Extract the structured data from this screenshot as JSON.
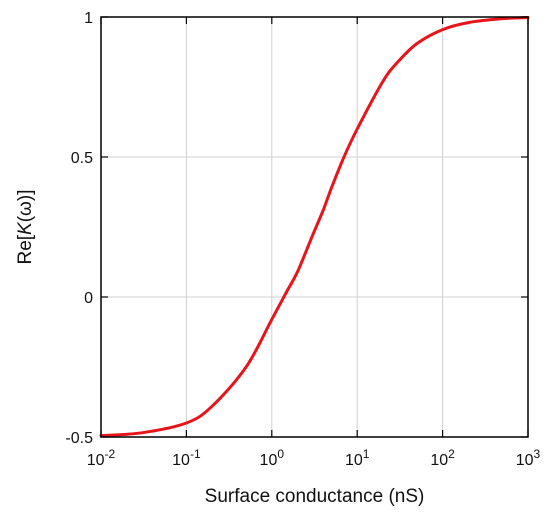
{
  "chart_data": {
    "type": "line",
    "xlabel": "Surface conductance (nS)",
    "ylabel": {
      "prefix": "Re[",
      "italic": "K",
      "suffix": "(ω)]"
    },
    "x_scale": "log",
    "xlim": [
      0.01,
      1000
    ],
    "ylim": [
      -0.5,
      1
    ],
    "x_ticks": [
      {
        "base": "10",
        "exp": "-2",
        "value": 0.01
      },
      {
        "base": "10",
        "exp": "-1",
        "value": 0.1
      },
      {
        "base": "10",
        "exp": "0",
        "value": 1
      },
      {
        "base": "10",
        "exp": "1",
        "value": 10
      },
      {
        "base": "10",
        "exp": "2",
        "value": 100
      },
      {
        "base": "10",
        "exp": "3",
        "value": 1000
      }
    ],
    "y_ticks": [
      {
        "label": "1",
        "value": 1
      },
      {
        "label": "0.5",
        "value": 0.5
      },
      {
        "label": "0",
        "value": 0
      },
      {
        "label": "-0.5",
        "value": -0.5
      }
    ],
    "grid": true,
    "series": [
      {
        "color": "#e8141b",
        "x": [
          0.01,
          0.03,
          0.1,
          0.2,
          0.5,
          1,
          1.5,
          2,
          3,
          4,
          5,
          7,
          10,
          20,
          30,
          50,
          100,
          200,
          500,
          1000
        ],
        "y": [
          -0.495,
          -0.485,
          -0.45,
          -0.39,
          -0.25,
          -0.08,
          0.02,
          0.09,
          0.22,
          0.31,
          0.39,
          0.5,
          0.6,
          0.77,
          0.84,
          0.905,
          0.955,
          0.98,
          0.994,
          0.998
        ]
      }
    ]
  }
}
